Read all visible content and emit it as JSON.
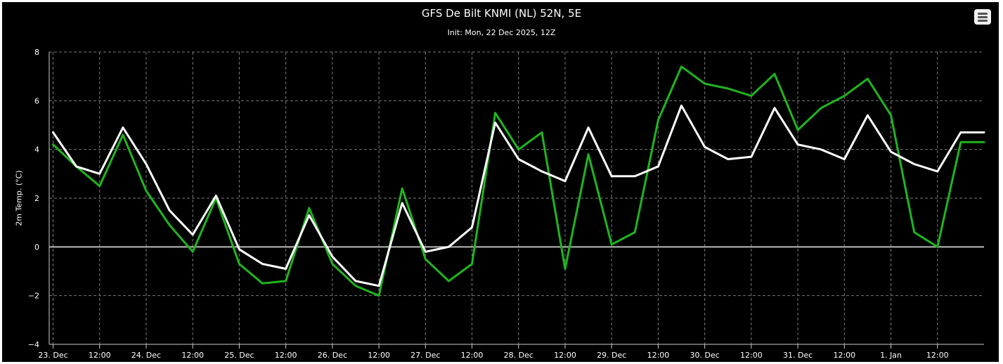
{
  "colors": {
    "background": "#000000",
    "grid": "#7a7a7a",
    "axis": "#cccccc",
    "zero_line": "#bbbbbb",
    "series_white": "#ffffff",
    "series_green": "#1fb51f"
  },
  "menu": {
    "icon": "hamburger-menu-icon"
  },
  "chart_data": {
    "type": "line",
    "title": "GFS De Bilt KNMI (NL) 52N, 5E",
    "subtitle": "Init: Mon, 22 Dec 2025, 12Z",
    "ylabel": "2m Temp. (°C)",
    "ylim": [
      -4,
      8
    ],
    "yticks": [
      -4,
      -2,
      0,
      2,
      4,
      6,
      8
    ],
    "ytick_labels": [
      "−4",
      "−2",
      "0",
      "2",
      "4",
      "6",
      "8"
    ],
    "x_unit": "hours after Mon, 22 Dec 2025, 12Z",
    "xlim": [
      11,
      252
    ],
    "xticks": [
      {
        "x": 12,
        "label": "23. Dec"
      },
      {
        "x": 24,
        "label": "12:00"
      },
      {
        "x": 36,
        "label": "24. Dec"
      },
      {
        "x": 48,
        "label": "12:00"
      },
      {
        "x": 60,
        "label": "25. Dec"
      },
      {
        "x": 72,
        "label": "12:00"
      },
      {
        "x": 84,
        "label": "26. Dec"
      },
      {
        "x": 96,
        "label": "12:00"
      },
      {
        "x": 108,
        "label": "27. Dec"
      },
      {
        "x": 120,
        "label": "12:00"
      },
      {
        "x": 132,
        "label": "28. Dec"
      },
      {
        "x": 144,
        "label": "12:00"
      },
      {
        "x": 156,
        "label": "29. Dec"
      },
      {
        "x": 168,
        "label": "12:00"
      },
      {
        "x": 180,
        "label": "30. Dec"
      },
      {
        "x": 192,
        "label": "12:00"
      },
      {
        "x": 204,
        "label": "31. Dec"
      },
      {
        "x": 216,
        "label": "12:00"
      },
      {
        "x": 228,
        "label": "1. Jan"
      },
      {
        "x": 240,
        "label": "12:00"
      }
    ],
    "x": [
      12,
      18,
      24,
      30,
      36,
      42,
      48,
      54,
      60,
      66,
      72,
      78,
      84,
      90,
      96,
      102,
      108,
      114,
      120,
      126,
      132,
      138,
      144,
      150,
      156,
      162,
      168,
      174,
      180,
      186,
      192,
      198,
      204,
      210,
      216,
      222,
      228,
      234,
      240,
      246,
      252
    ],
    "grid": true,
    "legend": "none",
    "series": [
      {
        "color": "#ffffff",
        "values": [
          4.7,
          3.3,
          3.0,
          4.9,
          3.4,
          1.5,
          0.5,
          2.1,
          -0.1,
          -0.7,
          -0.9,
          1.3,
          -0.4,
          -1.4,
          -1.6,
          1.8,
          -0.2,
          0.0,
          0.8,
          5.1,
          3.6,
          3.1,
          2.7,
          4.9,
          2.9,
          2.9,
          3.3,
          5.8,
          4.1,
          3.6,
          3.7,
          5.7,
          4.2,
          4.0,
          3.6,
          5.4,
          3.9,
          3.4,
          3.1,
          4.7,
          4.7
        ]
      },
      {
        "color": "#1fb51f",
        "values": [
          4.2,
          3.3,
          2.5,
          4.6,
          2.3,
          0.9,
          -0.2,
          2.0,
          -0.7,
          -1.5,
          -1.4,
          1.6,
          -0.7,
          -1.6,
          -2.0,
          2.4,
          -0.5,
          -1.4,
          -0.7,
          5.5,
          4.0,
          4.7,
          -0.9,
          3.8,
          0.1,
          0.6,
          5.2,
          7.4,
          6.7,
          6.5,
          6.2,
          7.1,
          4.8,
          5.7,
          6.2,
          6.9,
          5.4,
          0.6,
          0.0,
          4.3,
          4.3
        ]
      }
    ]
  }
}
